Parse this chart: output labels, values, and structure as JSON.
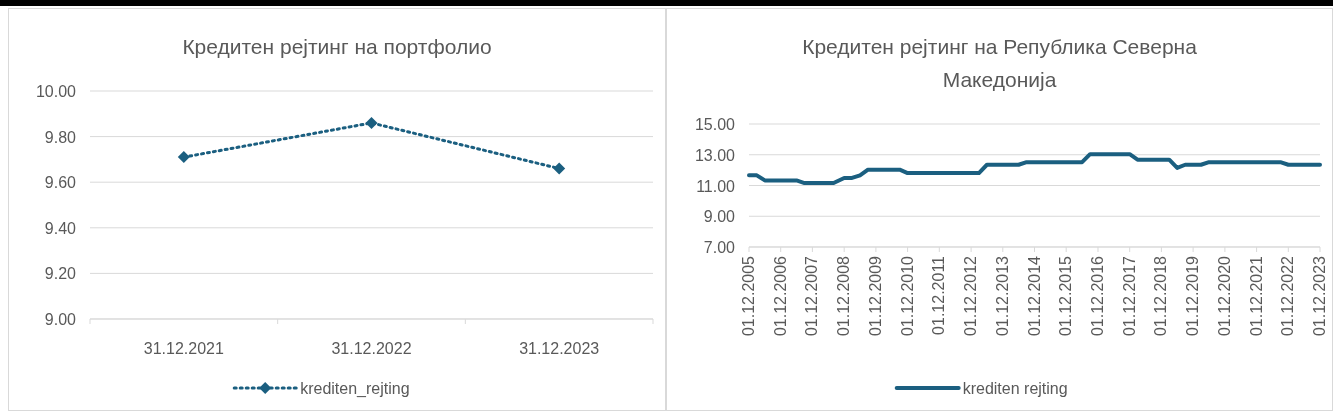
{
  "chart_data": [
    {
      "type": "line",
      "title": "Кредитен рејтинг на портфолио",
      "categories": [
        "31.12.2021",
        "31.12.2022",
        "31.12.2023"
      ],
      "series": [
        {
          "name": "krediten_rejting",
          "color": "#1b5f80",
          "values": [
            9.71,
            9.86,
            9.66
          ],
          "marker": "diamond",
          "line_style": "dotted"
        }
      ],
      "ylim": [
        9,
        10
      ],
      "yticks": [
        {
          "value": 9,
          "label": "9.00"
        },
        {
          "value": 9.2,
          "label": "9.20"
        },
        {
          "value": 9.4,
          "label": "9.40"
        },
        {
          "value": 9.6,
          "label": "9.60"
        },
        {
          "value": 9.8,
          "label": "9.80"
        },
        {
          "value": 10,
          "label": "10.00"
        }
      ],
      "grid": "y",
      "legend": "bottom"
    },
    {
      "type": "line",
      "title": "Кредитен рејтинг на Република Северна Македонија",
      "series": [
        {
          "name": "krediten rejting",
          "color": "#1b5f80",
          "marker": "none",
          "line_style": "solid",
          "x": [
            "2005-12-01",
            "2006-03-01",
            "2006-06-01",
            "2007-06-01",
            "2007-09-01",
            "2008-08-01",
            "2008-12-01",
            "2009-03-01",
            "2009-06-01",
            "2009-09-01",
            "2010-09-01",
            "2010-12-01",
            "2013-03-01",
            "2013-06-01",
            "2014-06-01",
            "2014-09-01",
            "2016-06-01",
            "2016-09-01",
            "2017-12-01",
            "2018-03-01",
            "2019-03-01",
            "2019-06-01",
            "2019-09-01",
            "2020-03-01",
            "2020-06-01",
            "2022-09-01",
            "2022-12-01",
            "2023-12-01"
          ],
          "values": [
            11.66,
            11.66,
            11.33,
            11.33,
            11.16,
            11.16,
            11.49,
            11.49,
            11.66,
            12.03,
            12.03,
            11.81,
            11.81,
            12.35,
            12.35,
            12.52,
            12.52,
            13.04,
            13.04,
            12.68,
            12.68,
            12.14,
            12.35,
            12.35,
            12.52,
            12.52,
            12.35,
            12.35
          ]
        }
      ],
      "xlim": [
        "2005-12-01",
        "2023-12-01"
      ],
      "xticks": [
        {
          "value": "2005-12-01",
          "label": "01.12.2005"
        },
        {
          "value": "2006-12-01",
          "label": "01.12.2006"
        },
        {
          "value": "2007-12-01",
          "label": "01.12.2007"
        },
        {
          "value": "2008-12-01",
          "label": "01.12.2008"
        },
        {
          "value": "2009-12-01",
          "label": "01.12.2009"
        },
        {
          "value": "2010-12-01",
          "label": "01.12.2010"
        },
        {
          "value": "2011-12-01",
          "label": "01.12.2011"
        },
        {
          "value": "2012-12-01",
          "label": "01.12.2012"
        },
        {
          "value": "2013-12-01",
          "label": "01.12.2013"
        },
        {
          "value": "2014-12-01",
          "label": "01.12.2014"
        },
        {
          "value": "2015-12-01",
          "label": "01.12.2015"
        },
        {
          "value": "2016-12-01",
          "label": "01.12.2016"
        },
        {
          "value": "2017-12-01",
          "label": "01.12.2017"
        },
        {
          "value": "2018-12-01",
          "label": "01.12.2018"
        },
        {
          "value": "2019-12-01",
          "label": "01.12.2019"
        },
        {
          "value": "2020-12-01",
          "label": "01.12.2020"
        },
        {
          "value": "2021-12-01",
          "label": "01.12.2021"
        },
        {
          "value": "2022-12-01",
          "label": "01.12.2022"
        },
        {
          "value": "2023-12-01",
          "label": "01.12.2023"
        }
      ],
      "ylim": [
        7,
        15
      ],
      "yticks": [
        {
          "value": 7,
          "label": "7.00"
        },
        {
          "value": 9,
          "label": "9.00"
        },
        {
          "value": 11,
          "label": "11.00"
        },
        {
          "value": 13,
          "label": "13.00"
        },
        {
          "value": 15,
          "label": "15.00"
        }
      ],
      "grid": "y",
      "legend": "bottom"
    }
  ]
}
